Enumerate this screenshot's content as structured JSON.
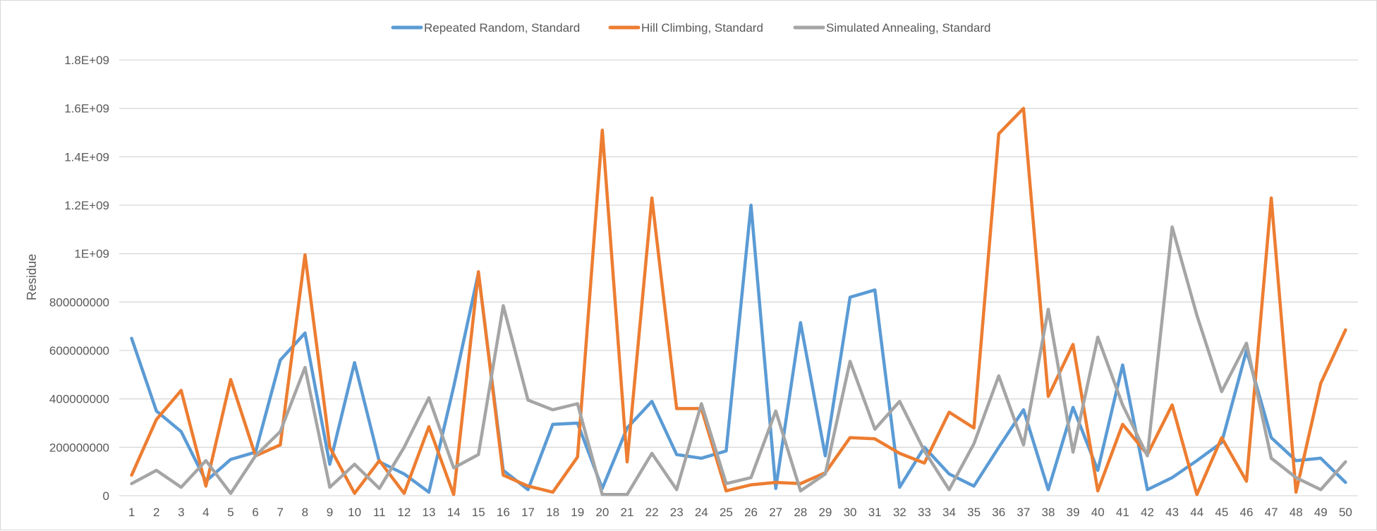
{
  "chart_data": {
    "type": "line",
    "title": "",
    "xlabel": "",
    "ylabel": "Residue",
    "ylim": [
      0,
      1800000000
    ],
    "grid": true,
    "legend_position": "top",
    "y_tick_labels": [
      "0",
      "200000000",
      "400000000",
      "600000000",
      "800000000",
      "1E+09",
      "1.2E+09",
      "1.4E+09",
      "1.6E+09",
      "1.8E+09"
    ],
    "x": [
      1,
      2,
      3,
      4,
      5,
      6,
      7,
      8,
      9,
      10,
      11,
      12,
      13,
      14,
      15,
      16,
      17,
      18,
      19,
      20,
      21,
      22,
      23,
      24,
      25,
      26,
      27,
      28,
      29,
      30,
      31,
      32,
      33,
      34,
      35,
      36,
      37,
      38,
      39,
      40,
      41,
      42,
      43,
      44,
      45,
      46,
      47,
      48,
      49,
      50
    ],
    "series": [
      {
        "name": "Repeated Random, Standard",
        "color": "#5b9bd5",
        "values": [
          650000000,
          350000000,
          265000000,
          60000000,
          150000000,
          180000000,
          560000000,
          672000000,
          130000000,
          550000000,
          140000000,
          90000000,
          15000000,
          450000000,
          920000000,
          105000000,
          25000000,
          295000000,
          300000000,
          30000000,
          280000000,
          390000000,
          170000000,
          155000000,
          185000000,
          1200000000,
          30000000,
          715000000,
          165000000,
          820000000,
          850000000,
          35000000,
          200000000,
          90000000,
          40000000,
          200000000,
          355000000,
          25000000,
          365000000,
          105000000,
          540000000,
          25000000,
          75000000,
          145000000,
          220000000,
          600000000,
          240000000,
          145000000,
          155000000,
          55000000
        ]
      },
      {
        "name": "Hill Climbing, Standard",
        "color": "#ed7d31",
        "values": [
          85000000,
          315000000,
          435000000,
          40000000,
          480000000,
          165000000,
          210000000,
          995000000,
          200000000,
          10000000,
          145000000,
          10000000,
          285000000,
          5000000,
          925000000,
          85000000,
          40000000,
          15000000,
          160000000,
          1510000000,
          140000000,
          1230000000,
          360000000,
          360000000,
          20000000,
          45000000,
          55000000,
          50000000,
          95000000,
          240000000,
          235000000,
          175000000,
          135000000,
          345000000,
          280000000,
          1495000000,
          1600000000,
          410000000,
          625000000,
          20000000,
          295000000,
          170000000,
          375000000,
          5000000,
          240000000,
          60000000,
          1230000000,
          15000000,
          465000000,
          685000000
        ]
      },
      {
        "name": "Simulated Annealing, Standard",
        "color": "#a5a5a5",
        "values": [
          50000000,
          105000000,
          35000000,
          145000000,
          10000000,
          165000000,
          265000000,
          530000000,
          35000000,
          130000000,
          30000000,
          200000000,
          405000000,
          115000000,
          170000000,
          785000000,
          395000000,
          355000000,
          380000000,
          5000000,
          5000000,
          175000000,
          25000000,
          380000000,
          50000000,
          75000000,
          350000000,
          20000000,
          90000000,
          555000000,
          275000000,
          390000000,
          185000000,
          25000000,
          215000000,
          495000000,
          210000000,
          770000000,
          180000000,
          655000000,
          375000000,
          165000000,
          1110000000,
          745000000,
          430000000,
          630000000,
          155000000,
          75000000,
          25000000,
          140000000
        ]
      }
    ]
  }
}
